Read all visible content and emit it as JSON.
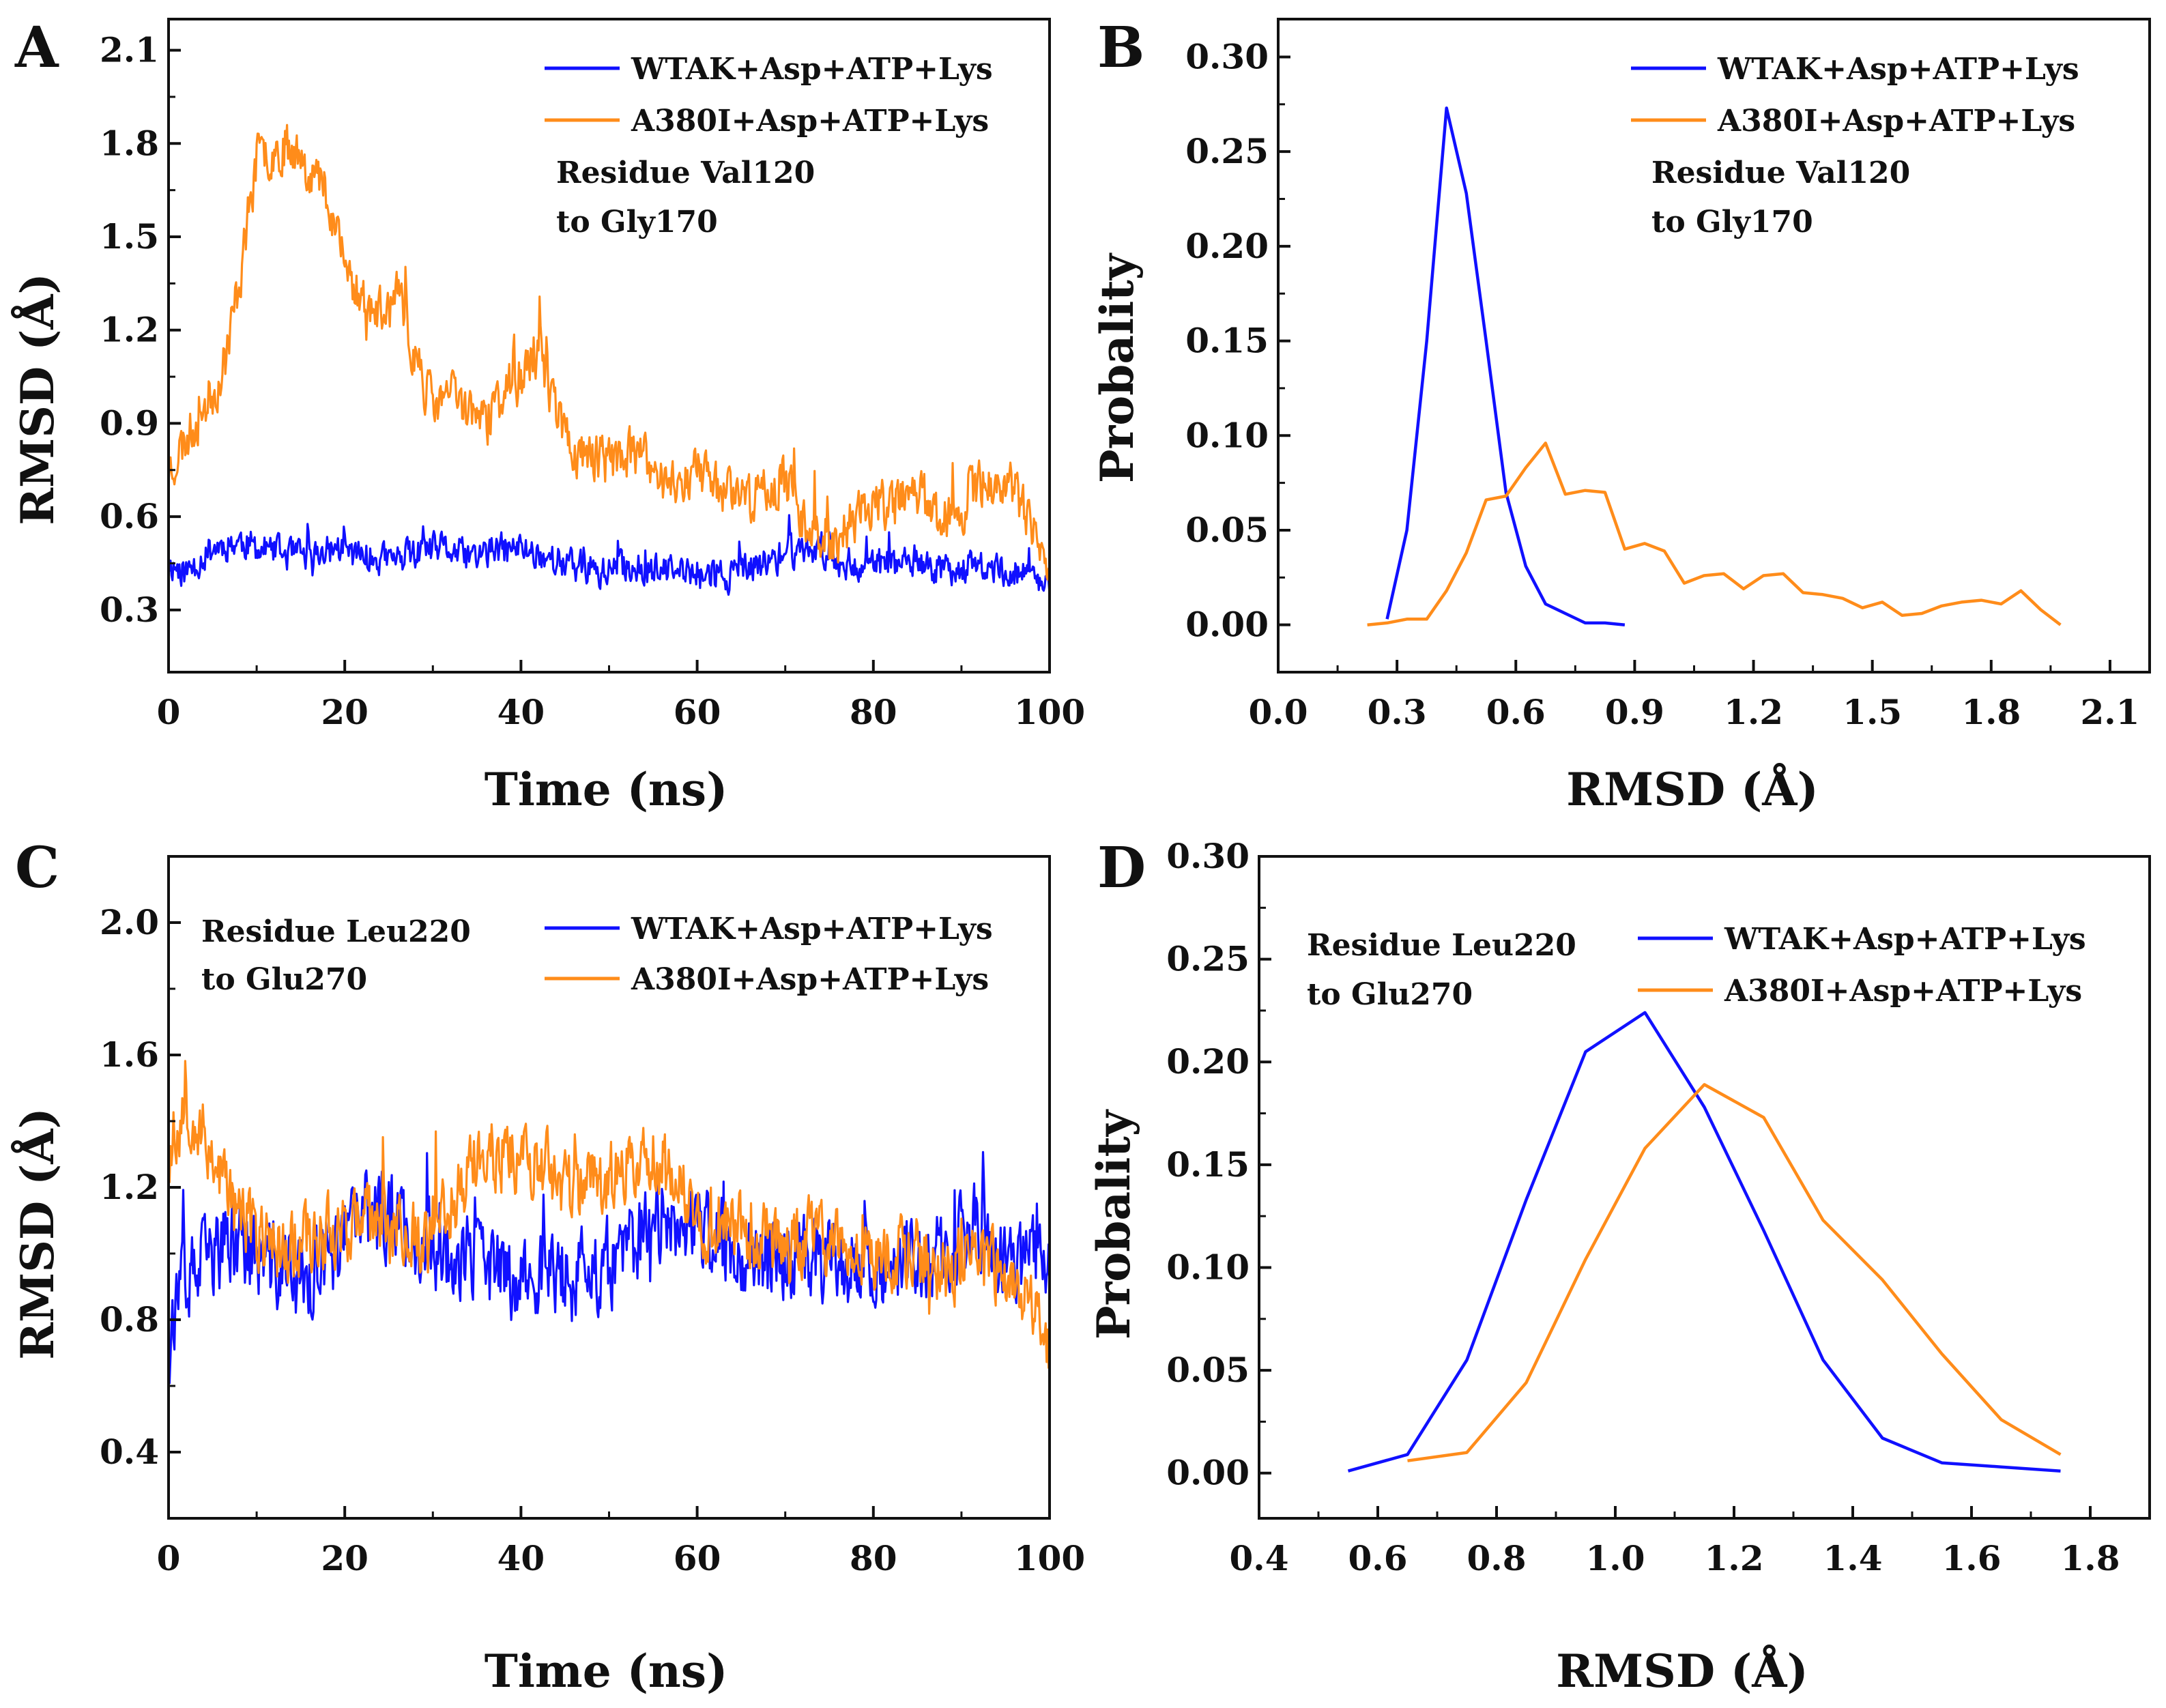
{
  "colors": {
    "wt": "#1010ff",
    "mut": "#ff8c1a",
    "axis": "#111111"
  },
  "chart_data": [
    {
      "panel": "A",
      "type": "line",
      "title": "",
      "xlabel": "Time (ns)",
      "ylabel": "RMSD (Å)",
      "xlim": [
        0,
        100
      ],
      "ylim": [
        0.1,
        2.2
      ],
      "xticks": [
        0,
        20,
        40,
        60,
        80,
        100
      ],
      "yticks": [
        0.3,
        0.6,
        0.9,
        1.2,
        1.5,
        1.8,
        2.1
      ],
      "tick_decimals": 1,
      "annotation": [
        "Residue Val120",
        "to Gly170"
      ],
      "legend_position": "top-right",
      "noise": true,
      "series": [
        {
          "name": "WTAK+Asp+ATP+Lys",
          "color_key": "wt",
          "x": [
            0,
            2,
            5,
            8,
            10,
            13,
            16,
            19,
            22,
            25,
            28,
            31,
            34,
            37,
            40,
            43,
            46,
            49,
            52,
            55,
            58,
            61,
            64,
            67,
            70,
            73,
            76,
            79,
            82,
            85,
            88,
            91,
            94,
            97,
            100
          ],
          "y": [
            0.45,
            0.42,
            0.5,
            0.52,
            0.5,
            0.48,
            0.47,
            0.5,
            0.47,
            0.46,
            0.48,
            0.5,
            0.47,
            0.49,
            0.5,
            0.47,
            0.44,
            0.42,
            0.44,
            0.43,
            0.42,
            0.42,
            0.41,
            0.44,
            0.48,
            0.5,
            0.46,
            0.44,
            0.45,
            0.44,
            0.43,
            0.44,
            0.43,
            0.42,
            0.38
          ],
          "amp": 0.07,
          "seed": 11
        },
        {
          "name": "A380I+Asp+ATP+Lys",
          "color_key": "mut",
          "x": [
            0,
            2,
            4,
            6,
            8,
            10,
            12,
            14,
            16,
            18,
            20,
            22,
            24,
            26,
            28,
            30,
            32,
            34,
            36,
            38,
            40,
            42,
            44,
            46,
            48,
            50,
            52,
            54,
            56,
            58,
            60,
            62,
            64,
            66,
            68,
            70,
            72,
            74,
            76,
            78,
            80,
            82,
            84,
            86,
            88,
            90,
            92,
            94,
            96,
            98,
            100
          ],
          "y": [
            0.75,
            0.85,
            0.95,
            1.05,
            1.35,
            1.75,
            1.78,
            1.8,
            1.72,
            1.65,
            1.4,
            1.3,
            1.25,
            1.3,
            1.12,
            0.95,
            1.0,
            0.95,
            0.9,
            1.0,
            1.05,
            1.12,
            0.95,
            0.8,
            0.8,
            0.78,
            0.8,
            0.78,
            0.72,
            0.72,
            0.75,
            0.7,
            0.7,
            0.65,
            0.7,
            0.72,
            0.6,
            0.55,
            0.52,
            0.6,
            0.65,
            0.62,
            0.7,
            0.65,
            0.6,
            0.62,
            0.7,
            0.72,
            0.68,
            0.55,
            0.4
          ],
          "amp": 0.11,
          "seed": 23
        }
      ]
    },
    {
      "panel": "B",
      "type": "line",
      "title": "",
      "xlabel": "RMSD (Å)",
      "ylabel": "Probality",
      "xlim": [
        0,
        2.2
      ],
      "ylim": [
        -0.025,
        0.32
      ],
      "xticks": [
        0.0,
        0.3,
        0.6,
        0.9,
        1.2,
        1.5,
        1.8,
        2.1
      ],
      "yticks": [
        0.0,
        0.05,
        0.1,
        0.15,
        0.2,
        0.25,
        0.3
      ],
      "xtick_decimals": 1,
      "ytick_decimals": 2,
      "annotation": [
        "Residue Val120",
        "to Gly170"
      ],
      "legend_position": "top-right",
      "noise": false,
      "series": [
        {
          "name": "WTAK+Asp+ATP+Lys",
          "color_key": "wt",
          "x": [
            0.275,
            0.325,
            0.375,
            0.425,
            0.475,
            0.525,
            0.575,
            0.625,
            0.675,
            0.725,
            0.775,
            0.825,
            0.875
          ],
          "y": [
            0.003,
            0.05,
            0.15,
            0.273,
            0.228,
            0.15,
            0.07,
            0.031,
            0.011,
            0.006,
            0.001,
            0.001,
            0.0
          ]
        },
        {
          "name": "A380I+Asp+ATP+Lys",
          "color_key": "mut",
          "x": [
            0.225,
            0.275,
            0.325,
            0.375,
            0.425,
            0.475,
            0.525,
            0.575,
            0.625,
            0.675,
            0.725,
            0.775,
            0.825,
            0.875,
            0.925,
            0.975,
            1.025,
            1.075,
            1.125,
            1.175,
            1.225,
            1.275,
            1.325,
            1.375,
            1.425,
            1.475,
            1.525,
            1.575,
            1.625,
            1.675,
            1.725,
            1.775,
            1.825,
            1.875,
            1.925,
            1.975
          ],
          "y": [
            0.0,
            0.001,
            0.003,
            0.003,
            0.018,
            0.038,
            0.066,
            0.068,
            0.083,
            0.096,
            0.069,
            0.071,
            0.07,
            0.04,
            0.043,
            0.039,
            0.022,
            0.026,
            0.027,
            0.019,
            0.026,
            0.027,
            0.017,
            0.016,
            0.014,
            0.009,
            0.012,
            0.005,
            0.006,
            0.01,
            0.012,
            0.013,
            0.011,
            0.018,
            0.008,
            0.0
          ]
        }
      ]
    },
    {
      "panel": "C",
      "type": "line",
      "title": "",
      "xlabel": "Time (ns)",
      "ylabel": "RMSD (Å)",
      "xlim": [
        0,
        100
      ],
      "ylim": [
        0.2,
        2.2
      ],
      "xticks": [
        0,
        20,
        40,
        60,
        80,
        100
      ],
      "yticks": [
        0.4,
        0.8,
        1.2,
        1.6,
        2.0
      ],
      "tick_decimals": 1,
      "annotation": [
        "Residue Leu220",
        "to Glu270"
      ],
      "legend_position": "top-right",
      "noise": true,
      "series": [
        {
          "name": "WTAK+Asp+ATP+Lys",
          "color_key": "wt",
          "x": [
            0,
            2,
            5,
            8,
            10,
            13,
            16,
            19,
            22,
            25,
            28,
            31,
            34,
            37,
            40,
            43,
            46,
            49,
            52,
            55,
            58,
            61,
            64,
            67,
            70,
            73,
            76,
            79,
            82,
            85,
            88,
            91,
            94,
            97,
            100
          ],
          "y": [
            0.8,
            0.9,
            1.0,
            1.05,
            0.98,
            0.95,
            0.92,
            1.0,
            1.12,
            1.12,
            1.05,
            1.0,
            0.98,
            0.95,
            0.92,
            0.95,
            0.92,
            0.95,
            1.0,
            1.08,
            1.12,
            1.05,
            1.02,
            1.0,
            1.0,
            0.98,
            0.98,
            0.98,
            0.98,
            1.0,
            0.98,
            1.05,
            1.0,
            0.98,
            0.95
          ],
          "amp": 0.18,
          "seed": 37
        },
        {
          "name": "A380I+Asp+ATP+Lys",
          "color_key": "mut",
          "x": [
            0,
            2,
            5,
            8,
            10,
            13,
            16,
            19,
            22,
            25,
            28,
            31,
            34,
            37,
            40,
            43,
            46,
            49,
            52,
            55,
            58,
            61,
            64,
            67,
            70,
            73,
            76,
            79,
            82,
            85,
            88,
            91,
            94,
            97,
            100
          ],
          "y": [
            1.3,
            1.45,
            1.3,
            1.12,
            1.05,
            1.02,
            1.05,
            1.08,
            1.1,
            1.08,
            1.05,
            1.1,
            1.25,
            1.3,
            1.3,
            1.25,
            1.2,
            1.22,
            1.25,
            1.3,
            1.2,
            1.05,
            1.08,
            1.05,
            1.02,
            1.05,
            1.02,
            0.98,
            1.0,
            1.0,
            0.95,
            0.98,
            0.95,
            0.9,
            0.7
          ],
          "amp": 0.15,
          "seed": 53
        }
      ]
    },
    {
      "panel": "D",
      "type": "line",
      "title": "",
      "xlabel": "RMSD (Å)",
      "ylabel": "Probality",
      "xlim": [
        0.4,
        1.9
      ],
      "ylim": [
        -0.022,
        0.3
      ],
      "xticks": [
        0.4,
        0.6,
        0.8,
        1.0,
        1.2,
        1.4,
        1.6,
        1.8
      ],
      "yticks": [
        0.0,
        0.05,
        0.1,
        0.15,
        0.2,
        0.25,
        0.3
      ],
      "xtick_decimals": 1,
      "ytick_decimals": 2,
      "annotation": [
        "Residue Leu220",
        "to Glu270"
      ],
      "legend_position": "top-right",
      "noise": false,
      "series": [
        {
          "name": "WTAK+Asp+ATP+Lys",
          "color_key": "wt",
          "x": [
            0.55,
            0.65,
            0.75,
            0.85,
            0.95,
            1.05,
            1.15,
            1.25,
            1.35,
            1.45,
            1.55,
            1.65,
            1.75
          ],
          "y": [
            0.001,
            0.009,
            0.055,
            0.133,
            0.205,
            0.224,
            0.178,
            0.118,
            0.055,
            0.017,
            0.005,
            0.003,
            0.001
          ]
        },
        {
          "name": "A380I+Asp+ATP+Lys",
          "color_key": "mut",
          "x": [
            0.65,
            0.75,
            0.85,
            0.95,
            1.05,
            1.15,
            1.25,
            1.35,
            1.45,
            1.55,
            1.65,
            1.75
          ],
          "y": [
            0.006,
            0.01,
            0.044,
            0.104,
            0.158,
            0.189,
            0.173,
            0.123,
            0.094,
            0.058,
            0.026,
            0.009
          ]
        }
      ]
    }
  ]
}
